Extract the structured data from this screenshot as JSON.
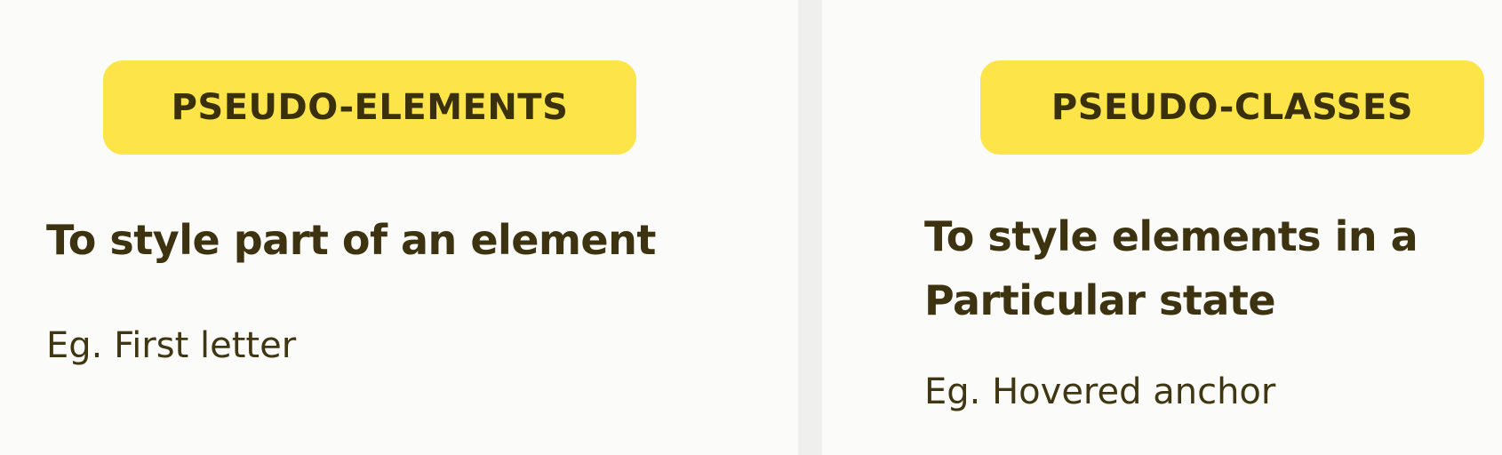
{
  "left": {
    "badge": "PSEUDO-ELEMENTS",
    "heading": "To style part of an element",
    "example": "Eg. First letter"
  },
  "right": {
    "badge": "PSEUDO-CLASSES",
    "heading_line1": "To style elements in a",
    "heading_line2": "Particular state",
    "example": "Eg. Hovered anchor"
  },
  "colors": {
    "badge_bg": "#fde549",
    "text": "#3d3310",
    "divider": "#efefee"
  }
}
